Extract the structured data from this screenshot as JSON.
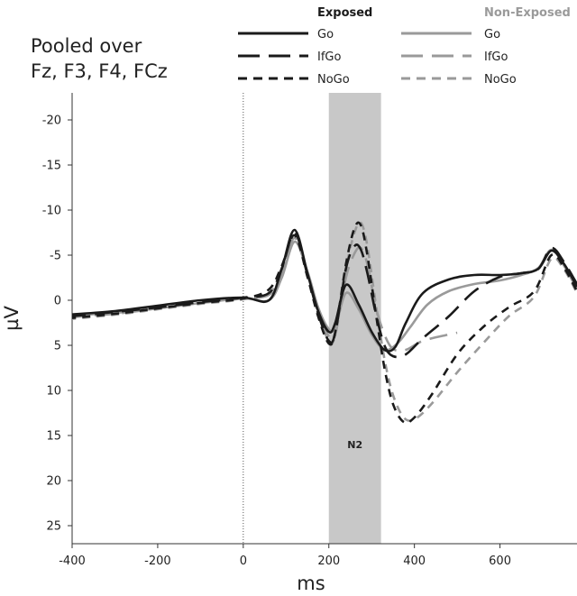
{
  "annotation_lines": [
    "Pooled over",
    "Fz, F3, F4, FCz"
  ],
  "legend": {
    "groups": [
      {
        "heading": "Exposed",
        "color": "#1a1a1a"
      },
      {
        "heading": "Non-Exposed",
        "color": "#9a9a9a"
      }
    ],
    "conditions": [
      {
        "label": "Go",
        "dash": "solid"
      },
      {
        "label": "IfGo",
        "dash": "long-dash"
      },
      {
        "label": "NoGo",
        "dash": "short-dash"
      }
    ]
  },
  "chart_data": {
    "type": "line",
    "title": "",
    "xlabel": "ms",
    "ylabel": "µV",
    "xlim": [
      -400,
      780
    ],
    "ylim": [
      -23,
      27
    ],
    "y_inverted": true,
    "xticks": [
      -400,
      -200,
      0,
      200,
      400,
      600
    ],
    "yticks": [
      -20,
      -15,
      -10,
      -5,
      0,
      5,
      10,
      15,
      20,
      25
    ],
    "grid": false,
    "legend_position": "top-right",
    "shaded_region": {
      "x_start": 200,
      "x_end": 322,
      "label": "N2",
      "label_y": 16,
      "color": "#c8c8c8"
    },
    "vertical_marker_x": 0,
    "series": [
      {
        "name": "Go",
        "group": "Exposed",
        "color": "#1a1a1a",
        "dash": "solid",
        "x": [
          -410,
          -300,
          -200,
          -100,
          0,
          60,
          90,
          120,
          150,
          175,
          200,
          215,
          240,
          270,
          300,
          330,
          355,
          380,
          420,
          480,
          540,
          600,
          650,
          690,
          720,
          750,
          780
        ],
        "y": [
          1.6,
          1.2,
          0.6,
          0,
          -0.3,
          0,
          -3.5,
          -7.8,
          -3,
          1.2,
          3.5,
          2.5,
          -1.7,
          0.5,
          3.5,
          5.5,
          5.2,
          2.5,
          -0.8,
          -2.3,
          -2.8,
          -2.8,
          -3,
          -3.5,
          -5.5,
          -4,
          -1.5
        ]
      },
      {
        "name": "IfGo",
        "group": "Exposed",
        "color": "#1a1a1a",
        "dash": "long-dash",
        "x": [
          -410,
          -300,
          -200,
          -100,
          0,
          60,
          90,
          120,
          150,
          175,
          200,
          215,
          240,
          260,
          275,
          290,
          310,
          330,
          350,
          380,
          420,
          480,
          540,
          600,
          650,
          690,
          720,
          750,
          780
        ],
        "y": [
          1.8,
          1.3,
          0.8,
          0.2,
          -0.3,
          -0.8,
          -3.5,
          -7.5,
          -2.8,
          1.5,
          4.5,
          3.6,
          -3.5,
          -6,
          -5.6,
          -3,
          1.5,
          5,
          6.2,
          6,
          4.2,
          1.8,
          -1,
          -2.6,
          -3,
          -3.5,
          -5.8,
          -4.2,
          -1.8
        ]
      },
      {
        "name": "NoGo",
        "group": "Exposed",
        "color": "#1a1a1a",
        "dash": "short-dash",
        "x": [
          -410,
          -300,
          -200,
          -100,
          0,
          60,
          90,
          120,
          150,
          175,
          200,
          215,
          240,
          260,
          275,
          290,
          310,
          330,
          350,
          375,
          400,
          440,
          500,
          560,
          620,
          680,
          720,
          750,
          780
        ],
        "y": [
          2,
          1.5,
          0.9,
          0.3,
          -0.2,
          -1.2,
          -3.8,
          -7.2,
          -2.6,
          1.8,
          4.8,
          3.5,
          -4,
          -8,
          -8.3,
          -5,
          1.5,
          7.5,
          11.5,
          13.5,
          13,
          10.5,
          6,
          3,
          0.8,
          -1,
          -5,
          -3.6,
          -1
        ]
      },
      {
        "name": "Go",
        "group": "Non-Exposed",
        "color": "#9a9a9a",
        "dash": "solid",
        "x": [
          -410,
          -300,
          -200,
          -100,
          0,
          60,
          90,
          120,
          150,
          175,
          200,
          215,
          240,
          270,
          300,
          330,
          360,
          390,
          430,
          480,
          540,
          600,
          650,
          690,
          720,
          750,
          780
        ],
        "y": [
          1.7,
          1.4,
          0.9,
          0.3,
          -0.2,
          0,
          -2.5,
          -6.5,
          -3.2,
          0.8,
          3.2,
          3,
          -0.8,
          1,
          3.8,
          5.5,
          4.8,
          3,
          0.5,
          -1,
          -1.8,
          -2.2,
          -2.8,
          -3.6,
          -5.6,
          -3.8,
          -1.2
        ]
      },
      {
        "name": "IfGo",
        "group": "Non-Exposed",
        "color": "#9a9a9a",
        "dash": "long-dash",
        "x": [
          -410,
          -300,
          -200,
          -100,
          0,
          60,
          90,
          120,
          150,
          175,
          200,
          215,
          240,
          260,
          275,
          290,
          310,
          330,
          350,
          380,
          420,
          480,
          500
        ],
        "y": [
          1.9,
          1.5,
          0.9,
          0.3,
          -0.2,
          -0.6,
          -2.8,
          -6.8,
          -3,
          1,
          4,
          3.8,
          -2.5,
          -5.2,
          -5.8,
          -4,
          0.8,
          3.8,
          5.4,
          5.5,
          4.5,
          3.8,
          3.6
        ]
      },
      {
        "name": "NoGo",
        "group": "Non-Exposed",
        "color": "#9a9a9a",
        "dash": "short-dash",
        "x": [
          -410,
          -300,
          -200,
          -100,
          0,
          60,
          90,
          120,
          150,
          175,
          200,
          215,
          240,
          260,
          275,
          290,
          310,
          330,
          350,
          375,
          400,
          440,
          500,
          560,
          620,
          680,
          720,
          750,
          780
        ],
        "y": [
          2.1,
          1.6,
          1,
          0.4,
          -0.1,
          -0.8,
          -3,
          -6.9,
          -2.9,
          1.4,
          4.5,
          3.8,
          -3.5,
          -7.5,
          -8.6,
          -6,
          0.5,
          6.5,
          10.5,
          13,
          13.2,
          11.5,
          8,
          4.8,
          1.8,
          -0.4,
          -4.6,
          -3.4,
          -0.8
        ]
      }
    ]
  }
}
